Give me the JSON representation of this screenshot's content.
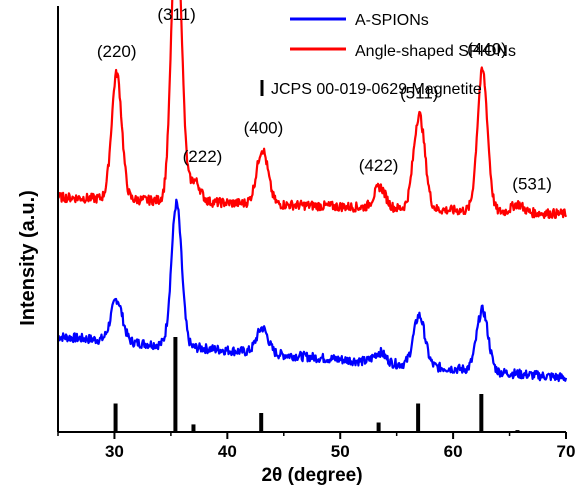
{
  "chart_data": {
    "type": "line",
    "xlabel": "2θ (degree)",
    "ylabel": "Intensity (a.u.)",
    "xlim": [
      25,
      70
    ],
    "x_ticks": [
      30,
      40,
      50,
      60,
      70
    ],
    "x_tick_labels": [
      "30",
      "40",
      "50",
      "60",
      "70"
    ],
    "y_ticks_shown": false,
    "legend_position": "top-right",
    "series": [
      {
        "name": "A-SPIONs",
        "color": "#0000ff",
        "baseline": 0.12,
        "peaks": [
          {
            "x": 30.2,
            "height": 0.2
          },
          {
            "x": 35.5,
            "height": 0.68
          },
          {
            "x": 43.1,
            "height": 0.12
          },
          {
            "x": 53.5,
            "height": 0.05
          },
          {
            "x": 57.0,
            "height": 0.24
          },
          {
            "x": 62.6,
            "height": 0.29
          }
        ],
        "slope_between": [
          [
            26.5,
            0.19
          ],
          [
            70,
            0.0
          ]
        ]
      },
      {
        "name": "Angle-shaped SPIONs",
        "color": "#ff0000",
        "baseline": 0.9,
        "peaks": [
          {
            "x": 30.2,
            "height": 0.6
          },
          {
            "x": 35.5,
            "height": 1.37
          },
          {
            "x": 37.1,
            "height": 0.1
          },
          {
            "x": 43.1,
            "height": 0.26
          },
          {
            "x": 53.5,
            "height": 0.1
          },
          {
            "x": 57.0,
            "height": 0.45
          },
          {
            "x": 62.6,
            "height": 0.67
          },
          {
            "x": 65.7,
            "height": 0.04
          }
        ],
        "slope_between": [
          [
            25,
            0.08
          ],
          [
            70,
            0.0
          ]
        ]
      }
    ],
    "reference": {
      "name": "JCPS 00-019-0629 Magnetite",
      "color": "#000000",
      "lines": [
        {
          "x": 30.1,
          "intensity": 0.3
        },
        {
          "x": 35.4,
          "intensity": 1.0
        },
        {
          "x": 37.0,
          "intensity": 0.08
        },
        {
          "x": 43.0,
          "intensity": 0.2
        },
        {
          "x": 53.4,
          "intensity": 0.1
        },
        {
          "x": 56.9,
          "intensity": 0.3
        },
        {
          "x": 62.5,
          "intensity": 0.4
        },
        {
          "x": 65.7,
          "intensity": 0.02
        }
      ]
    },
    "annotations": [
      {
        "text": "(220)",
        "x": 30.2
      },
      {
        "text": "(311)",
        "x": 35.5
      },
      {
        "text": "(222)",
        "x": 37.8
      },
      {
        "text": "(400)",
        "x": 43.2
      },
      {
        "text": "(422)",
        "x": 53.4
      },
      {
        "text": "(511)",
        "x": 57.0
      },
      {
        "text": "(440)",
        "x": 63.0
      },
      {
        "text": "(531)",
        "x": 67.0
      }
    ]
  }
}
